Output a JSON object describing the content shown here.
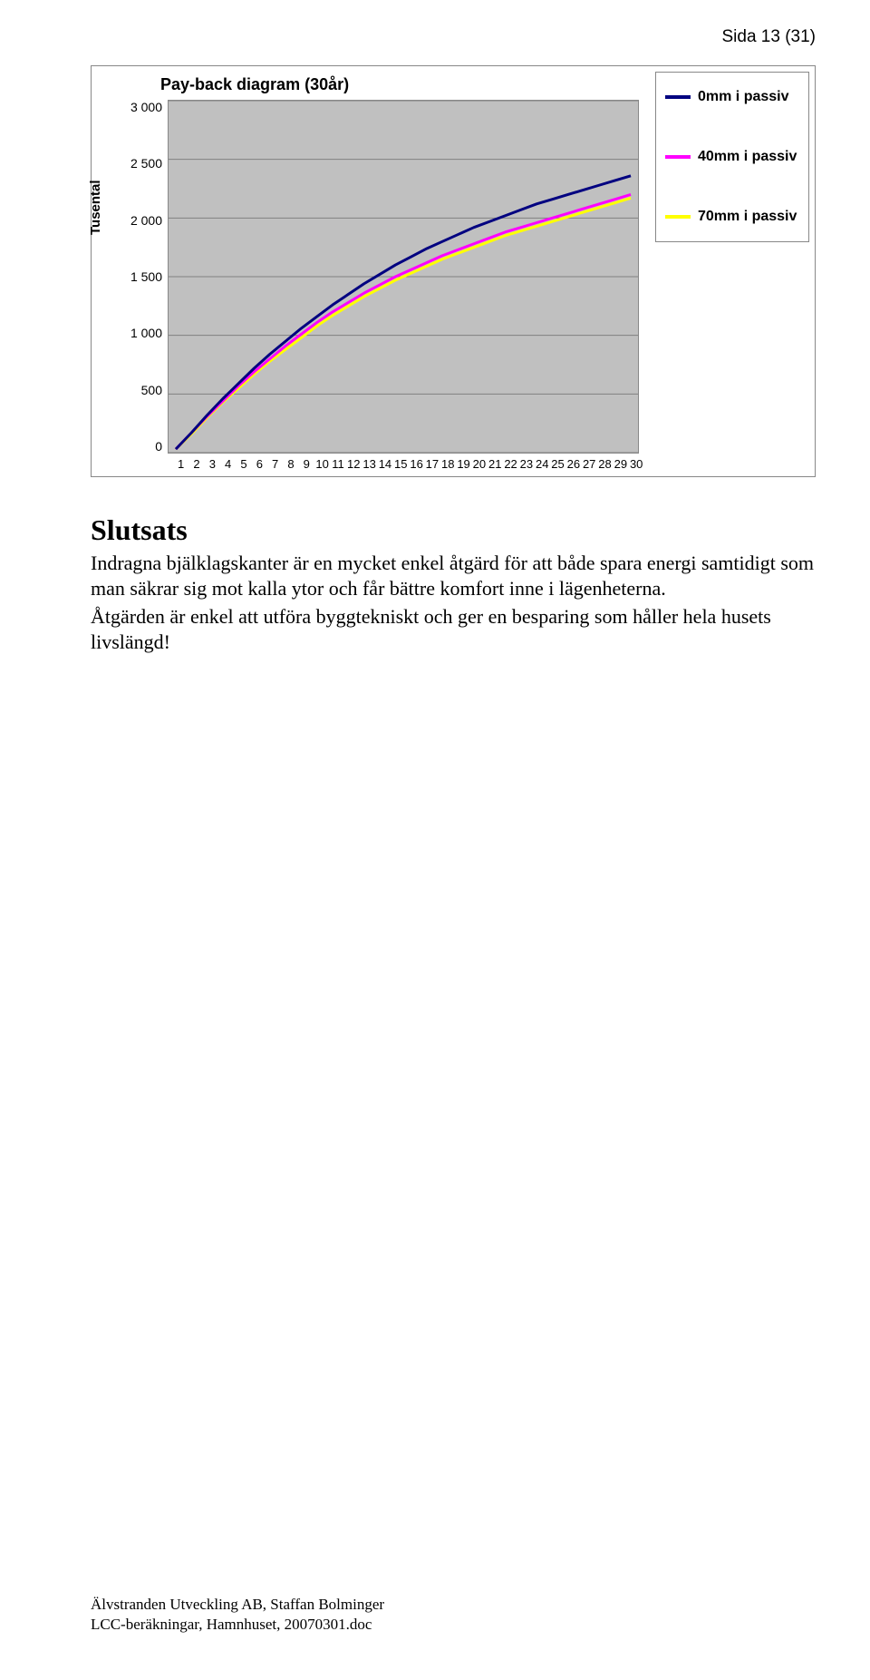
{
  "page_header": "Sida 13 (31)",
  "chart": {
    "type": "line",
    "title": "Pay-back diagram (30år)",
    "yaxis_label": "Tusental",
    "background_color": "#c0c0c0",
    "grid_color": "#808080",
    "plot_border_color": "#888888",
    "x_categories": [
      "1",
      "2",
      "3",
      "4",
      "5",
      "6",
      "7",
      "8",
      "9",
      "10",
      "11",
      "12",
      "13",
      "14",
      "15",
      "16",
      "17",
      "18",
      "19",
      "20",
      "21",
      "22",
      "23",
      "24",
      "25",
      "26",
      "27",
      "28",
      "29",
      "30"
    ],
    "y_ticks": [
      "3 000",
      "2 500",
      "2 000",
      "1 500",
      "1 000",
      "500",
      "0"
    ],
    "ylim": [
      0,
      3000
    ],
    "ytick_step": 500,
    "line_width": 3,
    "tick_fontsize": 14,
    "title_fontsize": 18,
    "series": [
      {
        "name": "0mm i passiv",
        "color": "#000080",
        "values": [
          30,
          170,
          320,
          460,
          590,
          720,
          840,
          950,
          1060,
          1160,
          1260,
          1350,
          1440,
          1520,
          1600,
          1670,
          1740,
          1800,
          1860,
          1920,
          1970,
          2020,
          2070,
          2120,
          2160,
          2200,
          2240,
          2280,
          2320,
          2360
        ]
      },
      {
        "name": "40mm i passiv",
        "color": "#ff00ff",
        "values": [
          30,
          170,
          310,
          440,
          570,
          690,
          800,
          910,
          1010,
          1110,
          1200,
          1280,
          1360,
          1430,
          1500,
          1560,
          1620,
          1680,
          1730,
          1780,
          1830,
          1880,
          1920,
          1960,
          2000,
          2040,
          2080,
          2120,
          2160,
          2200
        ]
      },
      {
        "name": "70mm i passiv",
        "color": "#ffff00",
        "values": [
          30,
          160,
          300,
          430,
          550,
          670,
          780,
          880,
          980,
          1080,
          1170,
          1250,
          1330,
          1400,
          1470,
          1530,
          1590,
          1650,
          1700,
          1750,
          1800,
          1850,
          1890,
          1930,
          1970,
          2010,
          2050,
          2090,
          2130,
          2170
        ]
      }
    ]
  },
  "conclusion": {
    "heading": "Slutsats",
    "para1": "Indragna bjälklagskanter är en mycket enkel åtgärd för att både spara energi samtidigt som man säkrar sig mot kalla ytor och får bättre komfort inne i lägenheterna.",
    "para2": "Åtgärden är enkel att utföra byggtekniskt och ger en besparing som håller hela husets livslängd!"
  },
  "footer": {
    "line1": "Älvstranden Utveckling AB, Staffan Bolminger",
    "line2": "LCC-beräkningar, Hamnhuset, 20070301.doc"
  }
}
